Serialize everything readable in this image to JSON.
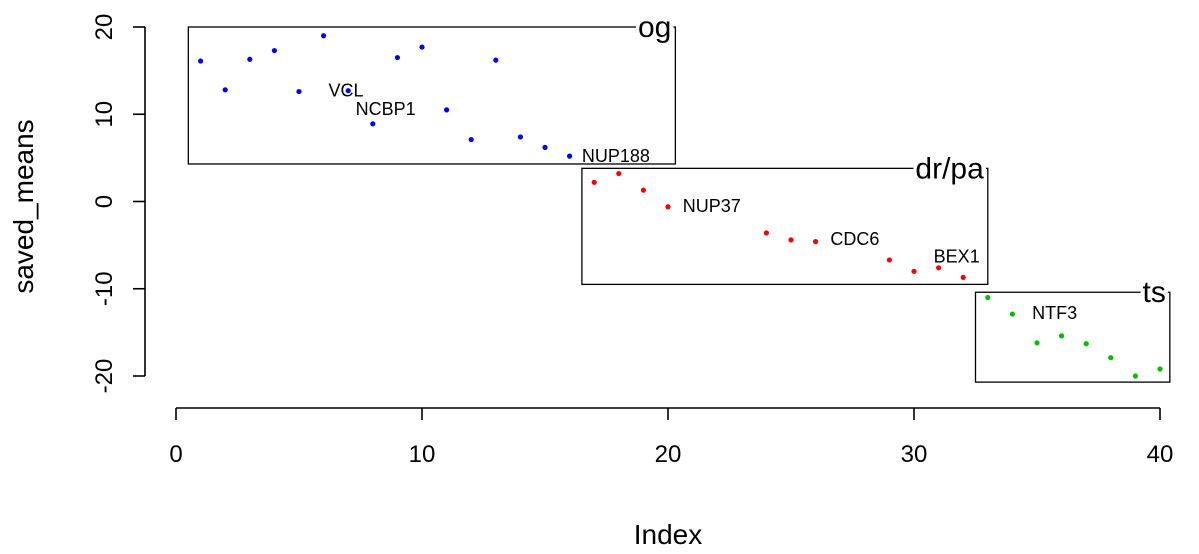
{
  "chart_data": {
    "type": "scatter",
    "xlabel": "Index",
    "ylabel": "saved_means",
    "xlim": [
      0,
      40
    ],
    "ylim": [
      -20,
      20
    ],
    "x_ticks": [
      0,
      10,
      20,
      30,
      40
    ],
    "y_ticks": [
      -20,
      -10,
      0,
      10,
      20
    ],
    "grid": false,
    "colors": {
      "og": "#0000ff",
      "drpa": "#ff0000",
      "ts": "#00c000"
    },
    "points": [
      {
        "x": 1,
        "y": 16.1,
        "group": "og"
      },
      {
        "x": 2,
        "y": 12.8,
        "group": "og"
      },
      {
        "x": 3,
        "y": 16.3,
        "group": "og"
      },
      {
        "x": 4,
        "y": 17.3,
        "group": "og"
      },
      {
        "x": 5,
        "y": 12.6,
        "group": "og"
      },
      {
        "x": 6,
        "y": 19.0,
        "group": "og"
      },
      {
        "x": 7,
        "y": 12.7,
        "group": "og",
        "label": "VCL"
      },
      {
        "x": 8,
        "y": 8.9,
        "group": "og"
      },
      {
        "x": 9,
        "y": 16.5,
        "group": "og"
      },
      {
        "x": 10,
        "y": 17.7,
        "group": "og"
      },
      {
        "x": 11,
        "y": 10.5,
        "group": "og"
      },
      {
        "x": 12,
        "y": 7.1,
        "group": "og"
      },
      {
        "x": 13,
        "y": 16.2,
        "group": "og"
      },
      {
        "x": 14,
        "y": 7.4,
        "group": "og"
      },
      {
        "x": 15,
        "y": 6.2,
        "group": "og"
      },
      {
        "x": 16,
        "y": 5.2,
        "group": "og"
      },
      {
        "x": 17,
        "y": 2.2,
        "group": "drpa"
      },
      {
        "x": 18,
        "y": 3.2,
        "group": "drpa"
      },
      {
        "x": 19,
        "y": 1.3,
        "group": "drpa"
      },
      {
        "x": 20,
        "y": -0.6,
        "group": "drpa"
      },
      {
        "x": 24,
        "y": -3.6,
        "group": "drpa"
      },
      {
        "x": 25,
        "y": -4.4,
        "group": "drpa"
      },
      {
        "x": 26,
        "y": -4.6,
        "group": "drpa"
      },
      {
        "x": 29,
        "y": -6.7,
        "group": "drpa"
      },
      {
        "x": 30,
        "y": -8.0,
        "group": "drpa"
      },
      {
        "x": 31,
        "y": -7.6,
        "group": "drpa"
      },
      {
        "x": 32,
        "y": -8.7,
        "group": "drpa"
      },
      {
        "x": 33,
        "y": -11.0,
        "group": "ts"
      },
      {
        "x": 34,
        "y": -12.9,
        "group": "ts"
      },
      {
        "x": 35,
        "y": -16.2,
        "group": "ts"
      },
      {
        "x": 36,
        "y": -15.4,
        "group": "ts"
      },
      {
        "x": 37,
        "y": -16.3,
        "group": "ts"
      },
      {
        "x": 38,
        "y": -17.9,
        "group": "ts"
      },
      {
        "x": 39,
        "y": -20.0,
        "group": "ts"
      },
      {
        "x": 40,
        "y": -19.2,
        "group": "ts"
      }
    ],
    "text_labels": [
      {
        "text": "VCL",
        "x": 6.2,
        "y": 12.7
      },
      {
        "text": "NCBP1",
        "x": 7.3,
        "y": 10.6
      },
      {
        "text": "NUP188",
        "x": 16.5,
        "y": 5.2
      },
      {
        "text": "NUP37",
        "x": 20.6,
        "y": -0.5
      },
      {
        "text": "CDC6",
        "x": 26.6,
        "y": -4.3
      },
      {
        "text": "BEX1",
        "x": 30.8,
        "y": -6.3
      },
      {
        "text": "NTF3",
        "x": 34.8,
        "y": -12.8
      }
    ],
    "groups": [
      {
        "label": "og",
        "x0": 0.5,
        "x1": 20.3,
        "y0": 4.3,
        "y1": 20.0
      },
      {
        "label": "dr/pa",
        "x0": 16.5,
        "x1": 33.0,
        "y0": -9.5,
        "y1": 3.8
      },
      {
        "label": "ts",
        "x0": 32.5,
        "x1": 40.4,
        "y0": -20.7,
        "y1": -10.4
      }
    ]
  }
}
